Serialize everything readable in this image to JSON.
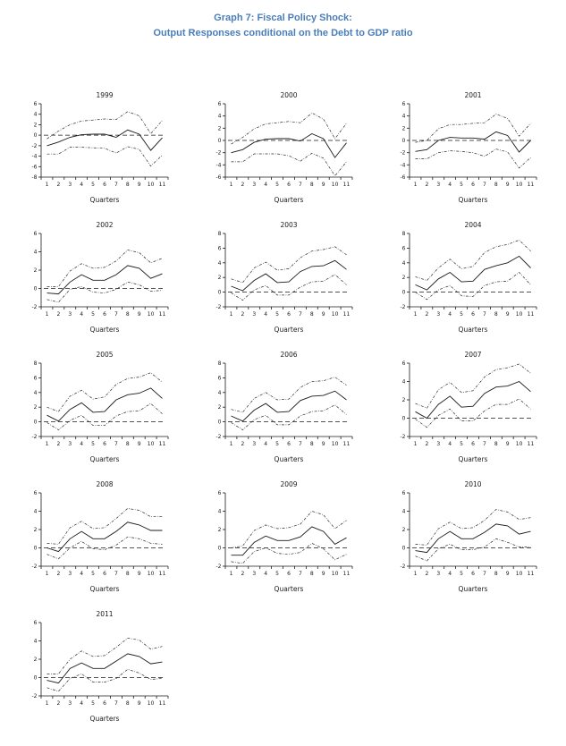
{
  "page": {
    "title_line1": "Graph 7: Fiscal Policy Shock:",
    "title_line2": "Output Responses conditional on the Debt to GDP ratio",
    "title_color": "#4a7ebb"
  },
  "chart_data": [
    {
      "type": "line",
      "title": "1999",
      "xlabel": "Quarters",
      "grid": false,
      "legend": "none",
      "x": [
        1,
        2,
        3,
        4,
        5,
        6,
        7,
        8,
        9,
        10,
        11
      ],
      "ylim": [
        -8,
        6
      ],
      "yticks": [
        6,
        4,
        2,
        0,
        -2,
        -4,
        -6,
        -8
      ],
      "zero_line": true,
      "series": [
        {
          "name": "upper_band",
          "line_style": "dash-dot",
          "values": [
            -0.7,
            0.8,
            2.0,
            2.7,
            2.9,
            3.1,
            3.0,
            4.5,
            3.7,
            0.3,
            2.8
          ]
        },
        {
          "name": "response",
          "line_style": "solid",
          "values": [
            -2.0,
            -1.3,
            -0.4,
            0.1,
            0.2,
            0.2,
            -0.4,
            1.0,
            0.2,
            -2.9,
            -0.5
          ]
        },
        {
          "name": "lower_band",
          "line_style": "dash-dot",
          "values": [
            -3.6,
            -3.6,
            -2.3,
            -2.3,
            -2.4,
            -2.5,
            -3.4,
            -2.2,
            -2.7,
            -5.9,
            -3.8
          ]
        }
      ]
    },
    {
      "type": "line",
      "title": "2000",
      "xlabel": "Quarters",
      "grid": false,
      "legend": "none",
      "x": [
        1,
        2,
        3,
        4,
        5,
        6,
        7,
        8,
        9,
        10,
        11
      ],
      "ylim": [
        -6,
        6
      ],
      "yticks": [
        6,
        4,
        2,
        0,
        -2,
        -4,
        -6
      ],
      "zero_line": true,
      "series": [
        {
          "name": "upper_band",
          "line_style": "dash-dot",
          "values": [
            -0.6,
            0.5,
            1.9,
            2.7,
            2.9,
            3.1,
            2.9,
            4.5,
            3.5,
            0.3,
            2.8
          ]
        },
        {
          "name": "response",
          "line_style": "solid",
          "values": [
            -2.0,
            -1.5,
            -0.3,
            0.2,
            0.3,
            0.3,
            -0.1,
            1.1,
            0.3,
            -2.8,
            -0.4
          ]
        },
        {
          "name": "lower_band",
          "line_style": "dash-dot",
          "values": [
            -3.5,
            -3.5,
            -2.2,
            -2.2,
            -2.2,
            -2.5,
            -3.4,
            -2.1,
            -2.9,
            -5.8,
            -3.5
          ]
        }
      ]
    },
    {
      "type": "line",
      "title": "2001",
      "xlabel": "Quarters",
      "grid": false,
      "legend": "none",
      "x": [
        1,
        2,
        3,
        4,
        5,
        6,
        7,
        8,
        9,
        10,
        11
      ],
      "ylim": [
        -6,
        6
      ],
      "yticks": [
        6,
        4,
        2,
        0,
        -2,
        -4,
        -6
      ],
      "zero_line": true,
      "series": [
        {
          "name": "upper_band",
          "line_style": "dash-dot",
          "values": [
            -0.3,
            0.0,
            1.9,
            2.6,
            2.6,
            2.8,
            2.9,
            4.3,
            3.6,
            0.7,
            2.8
          ]
        },
        {
          "name": "response",
          "line_style": "solid",
          "values": [
            -1.8,
            -1.5,
            0.0,
            0.5,
            0.4,
            0.4,
            0.2,
            1.4,
            0.8,
            -1.9,
            0.0
          ]
        },
        {
          "name": "lower_band",
          "line_style": "dash-dot",
          "values": [
            -3.0,
            -3.0,
            -2.0,
            -1.7,
            -1.8,
            -2.0,
            -2.6,
            -1.4,
            -1.9,
            -4.5,
            -2.8
          ]
        }
      ]
    },
    {
      "type": "line",
      "title": "2002",
      "xlabel": "Quarters",
      "grid": false,
      "legend": "none",
      "x": [
        1,
        2,
        3,
        4,
        5,
        6,
        7,
        8,
        9,
        10,
        11
      ],
      "ylim": [
        -2,
        6
      ],
      "yticks": [
        6,
        4,
        2,
        0,
        -2
      ],
      "zero_line": true,
      "series": [
        {
          "name": "upper_band",
          "line_style": "dash-dot",
          "values": [
            0.2,
            0.2,
            1.9,
            2.7,
            2.2,
            2.3,
            3.0,
            4.2,
            3.9,
            2.8,
            3.3
          ]
        },
        {
          "name": "response",
          "line_style": "solid",
          "values": [
            -0.5,
            -0.6,
            0.7,
            1.5,
            0.9,
            0.9,
            1.5,
            2.5,
            2.2,
            1.1,
            1.6
          ]
        },
        {
          "name": "lower_band",
          "line_style": "dash-dot",
          "values": [
            -1.2,
            -1.5,
            -0.1,
            0.2,
            -0.4,
            -0.5,
            -0.1,
            0.7,
            0.4,
            -0.3,
            -0.2
          ]
        }
      ]
    },
    {
      "type": "line",
      "title": "2003",
      "xlabel": "Quarters",
      "grid": false,
      "legend": "none",
      "x": [
        1,
        2,
        3,
        4,
        5,
        6,
        7,
        8,
        9,
        10,
        11
      ],
      "ylim": [
        -2,
        8
      ],
      "yticks": [
        8,
        6,
        4,
        2,
        0,
        -2
      ],
      "zero_line": true,
      "series": [
        {
          "name": "upper_band",
          "line_style": "dash-dot",
          "values": [
            1.8,
            1.3,
            3.3,
            4.1,
            3.0,
            3.2,
            4.7,
            5.6,
            5.8,
            6.2,
            5.1
          ]
        },
        {
          "name": "response",
          "line_style": "solid",
          "values": [
            0.8,
            0.2,
            1.6,
            2.5,
            1.3,
            1.4,
            2.8,
            3.5,
            3.6,
            4.3,
            3.1
          ]
        },
        {
          "name": "lower_band",
          "line_style": "dash-dot",
          "values": [
            -0.1,
            -1.1,
            0.3,
            0.9,
            -0.4,
            -0.4,
            0.7,
            1.4,
            1.5,
            2.4,
            1.0
          ]
        }
      ]
    },
    {
      "type": "line",
      "title": "2004",
      "xlabel": "Quarters",
      "grid": false,
      "legend": "none",
      "x": [
        1,
        2,
        3,
        4,
        5,
        6,
        7,
        8,
        9,
        10,
        11
      ],
      "ylim": [
        -2,
        8
      ],
      "yticks": [
        8,
        6,
        4,
        2,
        0,
        -2
      ],
      "zero_line": true,
      "series": [
        {
          "name": "upper_band",
          "line_style": "dash-dot",
          "values": [
            2.1,
            1.6,
            3.3,
            4.5,
            3.2,
            3.5,
            5.4,
            6.2,
            6.5,
            7.1,
            5.6
          ]
        },
        {
          "name": "response",
          "line_style": "solid",
          "values": [
            1.0,
            0.3,
            1.8,
            2.7,
            1.4,
            1.5,
            3.1,
            3.6,
            4.0,
            4.9,
            3.3
          ]
        },
        {
          "name": "lower_band",
          "line_style": "dash-dot",
          "values": [
            0.0,
            -1.0,
            0.3,
            0.9,
            -0.5,
            -0.6,
            0.9,
            1.4,
            1.5,
            2.7,
            1.0
          ]
        }
      ]
    },
    {
      "type": "line",
      "title": "2005",
      "xlabel": "Quarters",
      "grid": false,
      "legend": "none",
      "x": [
        1,
        2,
        3,
        4,
        5,
        6,
        7,
        8,
        9,
        10,
        11
      ],
      "ylim": [
        -2,
        8
      ],
      "yticks": [
        8,
        6,
        4,
        2,
        0,
        -2
      ],
      "zero_line": true,
      "series": [
        {
          "name": "upper_band",
          "line_style": "dash-dot",
          "values": [
            2.0,
            1.4,
            3.5,
            4.3,
            3.1,
            3.4,
            5.1,
            5.9,
            6.1,
            6.7,
            5.4
          ]
        },
        {
          "name": "response",
          "line_style": "solid",
          "values": [
            0.9,
            0.1,
            1.7,
            2.6,
            1.3,
            1.4,
            3.0,
            3.7,
            3.9,
            4.6,
            3.2
          ]
        },
        {
          "name": "lower_band",
          "line_style": "dash-dot",
          "values": [
            -0.1,
            -1.1,
            0.2,
            0.9,
            -0.5,
            -0.5,
            0.8,
            1.4,
            1.5,
            2.5,
            1.1
          ]
        }
      ]
    },
    {
      "type": "line",
      "title": "2006",
      "xlabel": "Quarters",
      "grid": false,
      "legend": "none",
      "x": [
        1,
        2,
        3,
        4,
        5,
        6,
        7,
        8,
        9,
        10,
        11
      ],
      "ylim": [
        -2,
        8
      ],
      "yticks": [
        8,
        6,
        4,
        2,
        0,
        -2
      ],
      "zero_line": true,
      "series": [
        {
          "name": "upper_band",
          "line_style": "dash-dot",
          "values": [
            1.7,
            1.3,
            3.2,
            4.0,
            3.0,
            3.1,
            4.7,
            5.5,
            5.6,
            6.1,
            5.0
          ]
        },
        {
          "name": "response",
          "line_style": "solid",
          "values": [
            0.8,
            0.1,
            1.6,
            2.5,
            1.3,
            1.4,
            2.9,
            3.5,
            3.6,
            4.2,
            3.0
          ]
        },
        {
          "name": "lower_band",
          "line_style": "dash-dot",
          "values": [
            -0.1,
            -1.1,
            0.3,
            0.9,
            -0.4,
            -0.4,
            0.8,
            1.4,
            1.5,
            2.3,
            1.0
          ]
        }
      ]
    },
    {
      "type": "line",
      "title": "2007",
      "xlabel": "Quarters",
      "grid": false,
      "legend": "none",
      "x": [
        1,
        2,
        3,
        4,
        5,
        6,
        7,
        8,
        9,
        10,
        11
      ],
      "ylim": [
        -2,
        6
      ],
      "yticks": [
        6,
        4,
        2,
        0,
        -2
      ],
      "zero_line": true,
      "series": [
        {
          "name": "upper_band",
          "line_style": "dash-dot",
          "values": [
            1.6,
            1.1,
            3.1,
            3.9,
            2.8,
            3.0,
            4.5,
            5.3,
            5.5,
            5.9,
            4.9
          ]
        },
        {
          "name": "response",
          "line_style": "solid",
          "values": [
            0.7,
            0.0,
            1.5,
            2.4,
            1.2,
            1.3,
            2.7,
            3.4,
            3.5,
            4.0,
            2.9
          ]
        },
        {
          "name": "lower_band",
          "line_style": "dash-dot",
          "values": [
            -0.1,
            -1.0,
            0.3,
            1.0,
            -0.3,
            -0.3,
            0.8,
            1.5,
            1.5,
            2.1,
            1.0
          ]
        }
      ]
    },
    {
      "type": "line",
      "title": "2008",
      "xlabel": "Quarters",
      "grid": false,
      "legend": "none",
      "x": [
        1,
        2,
        3,
        4,
        5,
        6,
        7,
        8,
        9,
        10,
        11
      ],
      "ylim": [
        -2,
        6
      ],
      "yticks": [
        6,
        4,
        2,
        0,
        -2
      ],
      "zero_line": true,
      "series": [
        {
          "name": "upper_band",
          "line_style": "dash-dot",
          "values": [
            0.5,
            0.4,
            2.2,
            2.9,
            2.1,
            2.2,
            3.2,
            4.3,
            4.1,
            3.4,
            3.4
          ]
        },
        {
          "name": "response",
          "line_style": "solid",
          "values": [
            0.0,
            -0.4,
            1.0,
            1.8,
            1.0,
            1.0,
            1.8,
            2.8,
            2.5,
            1.9,
            1.9
          ]
        },
        {
          "name": "lower_band",
          "line_style": "dash-dot",
          "values": [
            -0.7,
            -1.2,
            0.0,
            0.7,
            -0.1,
            -0.2,
            0.3,
            1.2,
            1.0,
            0.5,
            0.4
          ]
        }
      ]
    },
    {
      "type": "line",
      "title": "2009",
      "xlabel": "Quarters",
      "grid": false,
      "legend": "none",
      "x": [
        1,
        2,
        3,
        4,
        5,
        6,
        7,
        8,
        9,
        10,
        11
      ],
      "ylim": [
        -2,
        6
      ],
      "yticks": [
        6,
        4,
        2,
        0,
        -2
      ],
      "zero_line": true,
      "series": [
        {
          "name": "upper_band",
          "line_style": "dash-dot",
          "values": [
            0.0,
            0.2,
            1.9,
            2.5,
            2.1,
            2.2,
            2.6,
            4.0,
            3.6,
            2.1,
            3.0
          ]
        },
        {
          "name": "response",
          "line_style": "solid",
          "values": [
            -0.8,
            -0.8,
            0.6,
            1.3,
            0.8,
            0.8,
            1.2,
            2.3,
            1.8,
            0.4,
            1.1
          ]
        },
        {
          "name": "lower_band",
          "line_style": "dash-dot",
          "values": [
            -1.5,
            -1.7,
            -0.4,
            0.0,
            -0.6,
            -0.7,
            -0.5,
            0.5,
            -0.1,
            -1.3,
            -0.7
          ]
        }
      ]
    },
    {
      "type": "line",
      "title": "2010",
      "xlabel": "Quarters",
      "grid": false,
      "legend": "none",
      "x": [
        1,
        2,
        3,
        4,
        5,
        6,
        7,
        8,
        9,
        10,
        11
      ],
      "ylim": [
        -2,
        6
      ],
      "yticks": [
        6,
        4,
        2,
        0,
        -2
      ],
      "zero_line": true,
      "series": [
        {
          "name": "upper_band",
          "line_style": "dash-dot",
          "values": [
            0.4,
            0.3,
            2.1,
            2.8,
            2.1,
            2.2,
            3.0,
            4.2,
            3.9,
            3.1,
            3.3
          ]
        },
        {
          "name": "response",
          "line_style": "solid",
          "values": [
            -0.3,
            -0.5,
            1.0,
            1.8,
            1.0,
            1.0,
            1.7,
            2.6,
            2.4,
            1.5,
            1.8
          ]
        },
        {
          "name": "lower_band",
          "line_style": "dash-dot",
          "values": [
            -0.9,
            -1.4,
            -0.1,
            0.4,
            -0.2,
            -0.2,
            0.1,
            1.0,
            0.6,
            0.1,
            0.1
          ]
        }
      ]
    },
    {
      "type": "line",
      "title": "2011",
      "xlabel": "Quarters",
      "grid": false,
      "legend": "none",
      "x": [
        1,
        2,
        3,
        4,
        5,
        6,
        7,
        8,
        9,
        10,
        11
      ],
      "ylim": [
        -2,
        6
      ],
      "yticks": [
        6,
        4,
        2,
        0,
        -2
      ],
      "zero_line": true,
      "series": [
        {
          "name": "upper_band",
          "line_style": "dash-dot",
          "values": [
            0.4,
            0.4,
            2.0,
            2.9,
            2.3,
            2.4,
            3.3,
            4.3,
            4.1,
            3.1,
            3.4
          ]
        },
        {
          "name": "response",
          "line_style": "solid",
          "values": [
            -0.3,
            -0.6,
            1.0,
            1.6,
            1.0,
            1.0,
            1.8,
            2.6,
            2.3,
            1.5,
            1.7
          ]
        },
        {
          "name": "lower_band",
          "line_style": "dash-dot",
          "values": [
            -1.1,
            -1.5,
            -0.1,
            0.4,
            -0.5,
            -0.5,
            -0.1,
            0.9,
            0.5,
            -0.2,
            -0.1
          ]
        }
      ]
    }
  ]
}
